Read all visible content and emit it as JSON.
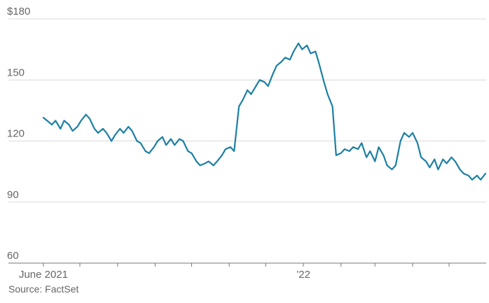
{
  "source_label": "Source: FactSet",
  "colors": {
    "line": "#1c7fa3",
    "grid": "#d9d9d9",
    "axis": "#777777",
    "text": "#666666"
  },
  "chart_data": {
    "type": "line",
    "title": "",
    "xlabel": "",
    "ylabel": "",
    "y_unit_prefix": "$",
    "ylim": [
      60,
      180
    ],
    "yticks": [
      60,
      90,
      120,
      150,
      180
    ],
    "ytick_labels": [
      "60",
      "90",
      "120",
      "150",
      "$180"
    ],
    "grid": true,
    "xlim": [
      "2021-06-01",
      "2022-05-31"
    ],
    "x_month_ticks": [
      "2021-06-01",
      "2021-07-01",
      "2021-08-01",
      "2021-09-01",
      "2021-10-01",
      "2021-11-01",
      "2021-12-01",
      "2022-01-01",
      "2022-02-01",
      "2022-03-01",
      "2022-04-01",
      "2022-05-01"
    ],
    "x_labels": [
      {
        "date": "2021-06-01",
        "text": "June 2021"
      },
      {
        "date": "2022-01-01",
        "text": "’22"
      }
    ],
    "series": [
      {
        "x": [
          "2021-06-01",
          "2021-06-04",
          "2021-06-08",
          "2021-06-11",
          "2021-06-15",
          "2021-06-18",
          "2021-06-22",
          "2021-06-25",
          "2021-06-29",
          "2021-07-02",
          "2021-07-06",
          "2021-07-09",
          "2021-07-13",
          "2021-07-16",
          "2021-07-20",
          "2021-07-23",
          "2021-07-27",
          "2021-07-30",
          "2021-08-03",
          "2021-08-06",
          "2021-08-10",
          "2021-08-13",
          "2021-08-17",
          "2021-08-20",
          "2021-08-24",
          "2021-08-27",
          "2021-08-31",
          "2021-09-03",
          "2021-09-07",
          "2021-09-10",
          "2021-09-14",
          "2021-09-17",
          "2021-09-21",
          "2021-09-24",
          "2021-09-28",
          "2021-10-01",
          "2021-10-05",
          "2021-10-08",
          "2021-10-12",
          "2021-10-15",
          "2021-10-19",
          "2021-10-22",
          "2021-10-26",
          "2021-10-29",
          "2021-11-02",
          "2021-11-05",
          "2021-11-09",
          "2021-11-12",
          "2021-11-16",
          "2021-11-19",
          "2021-11-23",
          "2021-11-26",
          "2021-11-30",
          "2021-12-03",
          "2021-12-07",
          "2021-12-10",
          "2021-12-14",
          "2021-12-17",
          "2021-12-21",
          "2021-12-24",
          "2021-12-28",
          "2021-12-31",
          "2022-01-04",
          "2022-01-07",
          "2022-01-11",
          "2022-01-14",
          "2022-01-18",
          "2022-01-21",
          "2022-01-25",
          "2022-01-28",
          "2022-02-01",
          "2022-02-04",
          "2022-02-08",
          "2022-02-11",
          "2022-02-15",
          "2022-02-18",
          "2022-02-22",
          "2022-02-25",
          "2022-03-01",
          "2022-03-04",
          "2022-03-08",
          "2022-03-11",
          "2022-03-15",
          "2022-03-18",
          "2022-03-22",
          "2022-03-25",
          "2022-03-29",
          "2022-04-01",
          "2022-04-05",
          "2022-04-08",
          "2022-04-12",
          "2022-04-15",
          "2022-04-19",
          "2022-04-22",
          "2022-04-26",
          "2022-04-29",
          "2022-05-03",
          "2022-05-06",
          "2022-05-10",
          "2022-05-13",
          "2022-05-17",
          "2022-05-20",
          "2022-05-24",
          "2022-05-27",
          "2022-05-31"
        ],
        "values": [
          131.5,
          130,
          128,
          130,
          126,
          130,
          128,
          125,
          127,
          130,
          133,
          131,
          126,
          124,
          126,
          124,
          120,
          123,
          126,
          124,
          127,
          125,
          120,
          119,
          115,
          114,
          117,
          120,
          122,
          118,
          121,
          118,
          121,
          120,
          115,
          114,
          110,
          108,
          109,
          110,
          108,
          110,
          113,
          116,
          117,
          115,
          137,
          140,
          145,
          143,
          147,
          150,
          149,
          147,
          153,
          157,
          159,
          161,
          160,
          164,
          168,
          165,
          167,
          163,
          164,
          158,
          149,
          143,
          137,
          113,
          114,
          116,
          115,
          117,
          116,
          119,
          112,
          115,
          110,
          117,
          113,
          108,
          106,
          108,
          120,
          124,
          122,
          124,
          119,
          112,
          110,
          107,
          111,
          106,
          111,
          109,
          112,
          110,
          106,
          104,
          103,
          101,
          103,
          101,
          104
        ]
      }
    ]
  }
}
